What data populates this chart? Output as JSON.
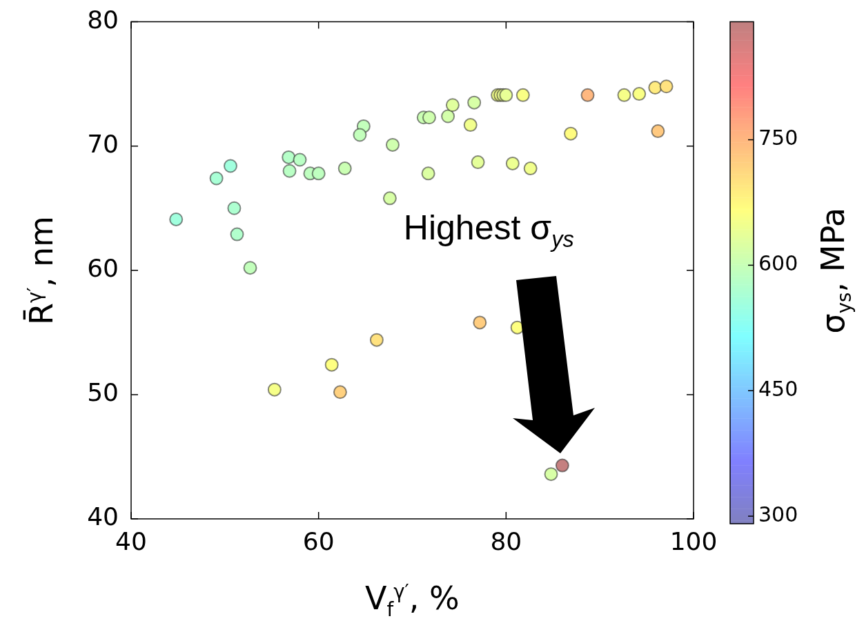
{
  "chart_data": {
    "type": "scatter",
    "xlabel": "V$_{f}$$^{γ′}$, %",
    "ylabel": "R̄$^{γ′}$, nm",
    "clabel": "σ$_{ys}$, MPa",
    "x": [
      44.8,
      49.1,
      50.6,
      51.0,
      51.3,
      52.7,
      56.8,
      58.0,
      56.9,
      59.1,
      60.0,
      62.8,
      64.8,
      64.4,
      67.9,
      67.6,
      71.2,
      71.8,
      73.8,
      74.3,
      76.6,
      76.2,
      79.1,
      79.4,
      79.7,
      80.0,
      81.8,
      88.7,
      92.6,
      94.2,
      95.9,
      97.1,
      86.9,
      96.2,
      71.7,
      77.0,
      80.7,
      82.6,
      55.3,
      61.4,
      62.3,
      66.2,
      77.2,
      81.2,
      84.8,
      86.0
    ],
    "values": [
      64.1,
      67.4,
      68.4,
      65.0,
      62.9,
      60.2,
      69.1,
      68.9,
      68.0,
      67.8,
      67.8,
      68.2,
      71.6,
      70.9,
      70.1,
      65.8,
      72.3,
      72.3,
      72.4,
      73.3,
      73.5,
      71.7,
      74.1,
      74.1,
      74.1,
      74.1,
      74.1,
      74.1,
      74.1,
      74.2,
      74.7,
      74.8,
      71.0,
      71.2,
      67.8,
      68.7,
      68.6,
      68.2,
      50.4,
      52.4,
      50.2,
      54.4,
      55.8,
      55.4,
      43.6,
      44.3
    ],
    "cvalues": [
      555,
      565,
      555,
      570,
      575,
      595,
      580,
      585,
      585,
      590,
      590,
      605,
      595,
      595,
      610,
      620,
      605,
      610,
      615,
      630,
      620,
      650,
      650,
      655,
      645,
      640,
      660,
      750,
      655,
      660,
      690,
      700,
      670,
      730,
      625,
      635,
      645,
      650,
      655,
      665,
      720,
      700,
      725,
      665,
      620,
      885
    ],
    "xlim": [
      40,
      100
    ],
    "ylim": [
      40,
      80
    ],
    "xticks": [
      40,
      60,
      80,
      100
    ],
    "yticks": [
      40,
      50,
      60,
      70,
      80
    ],
    "clim": [
      291,
      891
    ],
    "cticks": [
      300,
      450,
      600,
      750
    ],
    "marker": "circle",
    "annotations": [
      "Highest σ$_{ys}$"
    ]
  }
}
